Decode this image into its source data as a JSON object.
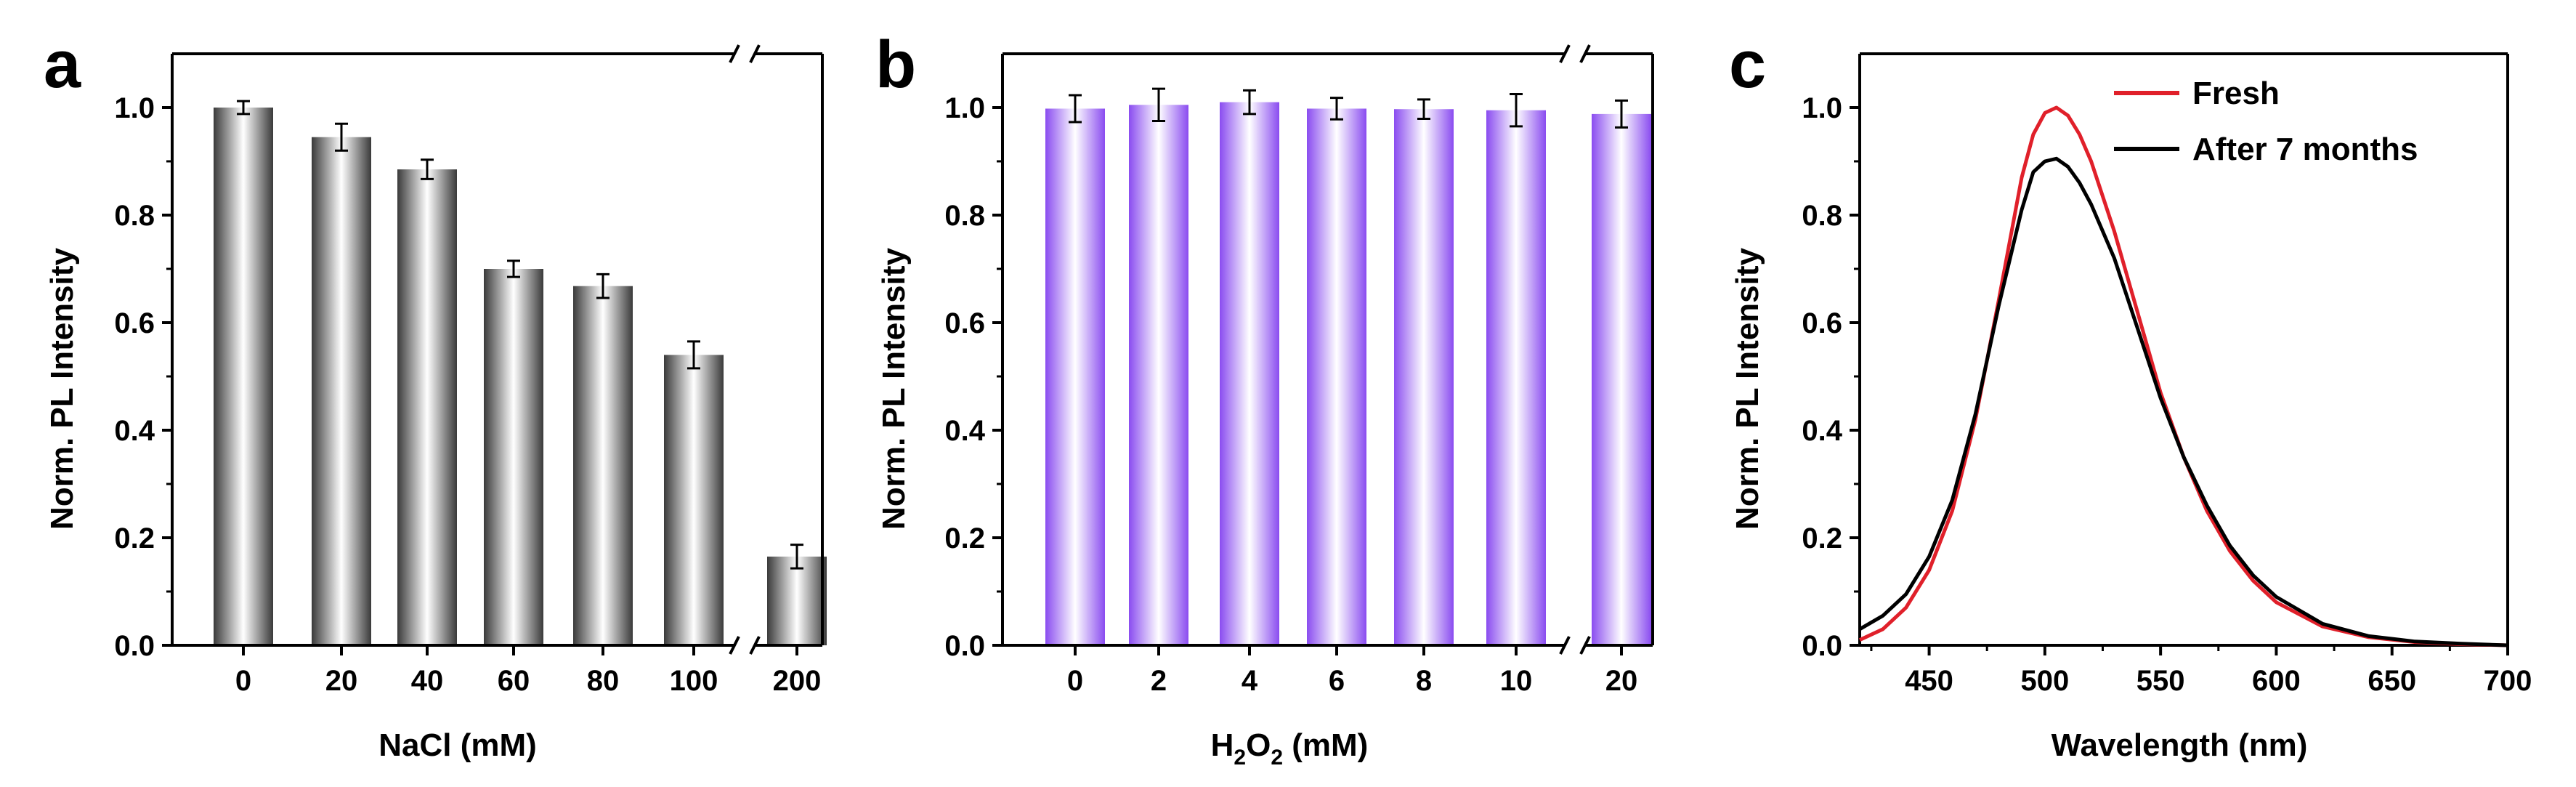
{
  "colors": {
    "panel_a_bar_dark": "#3a3a3a",
    "panel_a_bar_light": "#ffffff",
    "panel_b_bar_dark": "#8a4cf0",
    "panel_b_bar_light": "#ffffff",
    "fresh_line": "#e0202a",
    "aged_line": "#000000"
  },
  "chart_data": [
    {
      "panel": "a",
      "type": "bar",
      "xlabel": "NaCl (mM)",
      "ylabel": "Norm. PL Intensity",
      "ylim": [
        0.0,
        1.1
      ],
      "yticks": [
        "0.0",
        "0.2",
        "0.4",
        "0.6",
        "0.8",
        "1.0"
      ],
      "axis_break": "between 100 and 200",
      "categories": [
        "0",
        "20",
        "40",
        "60",
        "80",
        "100",
        "200"
      ],
      "values": [
        1.0,
        0.945,
        0.885,
        0.7,
        0.668,
        0.54,
        0.165
      ],
      "errors": [
        0.012,
        0.025,
        0.018,
        0.015,
        0.022,
        0.025,
        0.022
      ]
    },
    {
      "panel": "b",
      "type": "bar",
      "xlabel_main": "H",
      "xlabel_sub": "2",
      "xlabel_main2": "O",
      "xlabel_sub2": "2",
      "xlabel_tail": " (mM)",
      "ylabel": "Norm. PL Intensity",
      "ylim": [
        0.0,
        1.1
      ],
      "yticks": [
        "0.0",
        "0.2",
        "0.4",
        "0.6",
        "0.8",
        "1.0"
      ],
      "axis_break": "between 10 and 20",
      "categories": [
        "0",
        "2",
        "4",
        "6",
        "8",
        "10",
        "20"
      ],
      "values": [
        0.998,
        1.005,
        1.01,
        0.998,
        0.997,
        0.995,
        0.988
      ],
      "errors": [
        0.025,
        0.03,
        0.022,
        0.02,
        0.018,
        0.03,
        0.025
      ]
    },
    {
      "panel": "c",
      "type": "line",
      "xlabel": "Wavelength (nm)",
      "ylabel": "Norm. PL Intensity",
      "xlim": [
        420,
        700
      ],
      "ylim": [
        0.0,
        1.1
      ],
      "xticks": [
        "450",
        "500",
        "550",
        "600",
        "650",
        "700"
      ],
      "yticks": [
        "0.0",
        "0.2",
        "0.4",
        "0.6",
        "0.8",
        "1.0"
      ],
      "legend_position": "top-right",
      "series": [
        {
          "name": "Fresh",
          "x": [
            420,
            430,
            440,
            450,
            460,
            470,
            480,
            490,
            495,
            500,
            505,
            510,
            515,
            520,
            530,
            540,
            550,
            560,
            570,
            580,
            590,
            600,
            620,
            640,
            660,
            680,
            700
          ],
          "y": [
            0.01,
            0.03,
            0.07,
            0.14,
            0.25,
            0.42,
            0.64,
            0.87,
            0.95,
            0.99,
            1.0,
            0.985,
            0.95,
            0.9,
            0.77,
            0.62,
            0.47,
            0.35,
            0.25,
            0.175,
            0.12,
            0.08,
            0.035,
            0.015,
            0.006,
            0.002,
            0.0
          ]
        },
        {
          "name": "After 7 months",
          "x": [
            420,
            430,
            440,
            450,
            460,
            470,
            480,
            490,
            495,
            500,
            505,
            510,
            515,
            520,
            530,
            540,
            550,
            560,
            570,
            580,
            590,
            600,
            620,
            640,
            660,
            680,
            700
          ],
          "y": [
            0.03,
            0.055,
            0.095,
            0.165,
            0.27,
            0.43,
            0.63,
            0.81,
            0.88,
            0.9,
            0.905,
            0.89,
            0.86,
            0.82,
            0.72,
            0.59,
            0.46,
            0.35,
            0.26,
            0.185,
            0.13,
            0.09,
            0.04,
            0.017,
            0.007,
            0.003,
            0.0
          ]
        }
      ]
    }
  ]
}
